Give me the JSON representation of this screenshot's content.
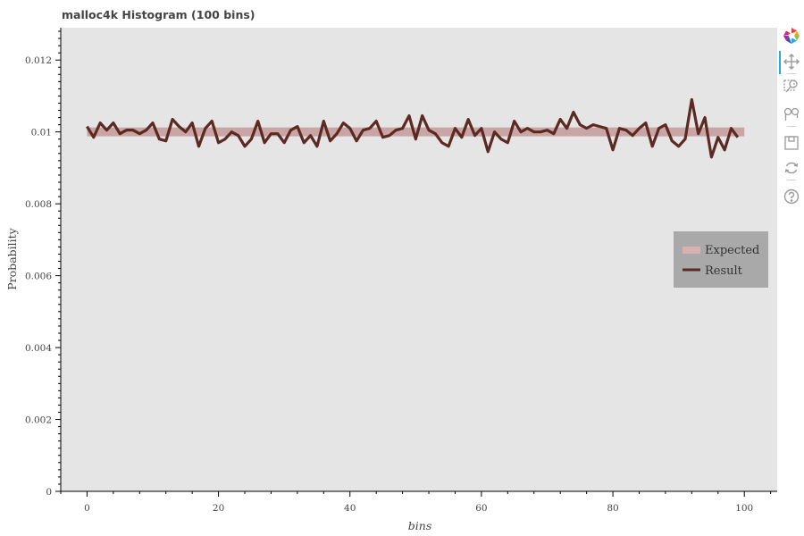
{
  "chart_data": {
    "type": "line",
    "title": "malloc4k Histogram (100 bins)",
    "xlabel": "bins",
    "ylabel": "Probability",
    "xlim": [
      -4,
      105
    ],
    "ylim": [
      0,
      0.0129
    ],
    "x_ticks": [
      "0",
      "20",
      "40",
      "60",
      "80",
      "100"
    ],
    "x_tick_values": [
      0,
      20,
      40,
      60,
      80,
      100
    ],
    "y_ticks": [
      "0",
      "0.002",
      "0.004",
      "0.006",
      "0.008",
      "0.01",
      "0.012"
    ],
    "y_tick_values": [
      0,
      0.002,
      0.004,
      0.006,
      0.008,
      0.01,
      0.012
    ],
    "grid": false,
    "background": "#e5e5e5",
    "legend_position": "right",
    "series": [
      {
        "name": "Expected",
        "color": "#bc8f8f",
        "x": [
          0,
          100
        ],
        "values": [
          0.01,
          0.01
        ]
      },
      {
        "name": "Result",
        "color": "#5c2a22",
        "x": [
          0,
          1,
          2,
          3,
          4,
          5,
          6,
          7,
          8,
          9,
          10,
          11,
          12,
          13,
          14,
          15,
          16,
          17,
          18,
          19,
          20,
          21,
          22,
          23,
          24,
          25,
          26,
          27,
          28,
          29,
          30,
          31,
          32,
          33,
          34,
          35,
          36,
          37,
          38,
          39,
          40,
          41,
          42,
          43,
          44,
          45,
          46,
          47,
          48,
          49,
          50,
          51,
          52,
          53,
          54,
          55,
          56,
          57,
          58,
          59,
          60,
          61,
          62,
          63,
          64,
          65,
          66,
          67,
          68,
          69,
          70,
          71,
          72,
          73,
          74,
          75,
          76,
          77,
          78,
          79,
          80,
          81,
          82,
          83,
          84,
          85,
          86,
          87,
          88,
          89,
          90,
          91,
          92,
          93,
          94,
          95,
          96,
          97,
          98,
          99
        ],
        "values": [
          0.01015,
          0.00985,
          0.01025,
          0.01005,
          0.01025,
          0.00995,
          0.01005,
          0.01005,
          0.00995,
          0.01005,
          0.01025,
          0.0098,
          0.00975,
          0.01035,
          0.01015,
          0.01,
          0.01025,
          0.0096,
          0.0101,
          0.0103,
          0.0097,
          0.0098,
          0.01,
          0.0099,
          0.0096,
          0.0098,
          0.0103,
          0.0097,
          0.00995,
          0.00995,
          0.0097,
          0.01005,
          0.01015,
          0.0097,
          0.0099,
          0.0096,
          0.0103,
          0.00975,
          0.00995,
          0.01025,
          0.0101,
          0.00975,
          0.01005,
          0.0101,
          0.0103,
          0.00985,
          0.0099,
          0.01005,
          0.0101,
          0.01045,
          0.0098,
          0.01045,
          0.01005,
          0.00995,
          0.0097,
          0.0096,
          0.0101,
          0.00985,
          0.01035,
          0.0099,
          0.0101,
          0.00945,
          0.01,
          0.0098,
          0.0097,
          0.0103,
          0.01,
          0.0101,
          0.01,
          0.01,
          0.01005,
          0.00995,
          0.01035,
          0.0101,
          0.01055,
          0.0102,
          0.0101,
          0.0102,
          0.01015,
          0.0101,
          0.0095,
          0.0101,
          0.01005,
          0.0099,
          0.0101,
          0.01025,
          0.0096,
          0.0101,
          0.0102,
          0.00975,
          0.0096,
          0.0098,
          0.0109,
          0.00995,
          0.0104,
          0.0093,
          0.00985,
          0.0095,
          0.0101,
          0.00985
        ]
      }
    ]
  },
  "toolbar": {
    "logo": "bokeh-logo-icon",
    "tools": [
      "pan-icon",
      "box-zoom-icon",
      "wheel-zoom-icon",
      "save-icon",
      "reset-icon",
      "help-icon"
    ]
  }
}
